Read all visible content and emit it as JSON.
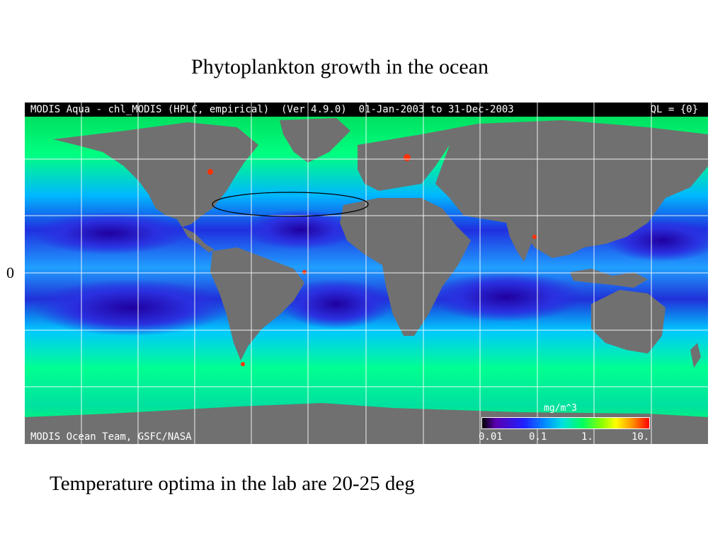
{
  "title": "Phytoplankton growth in the ocean",
  "equator_label": "0",
  "caption": "Temperature optima in the lab are 20-25 deg",
  "map": {
    "header": "MODIS Aqua - chl_MODIS (HPLC, empirical)  (Ver 4.9.0)  01-Jan-2003 to 31-Dec-2003",
    "ql": "QL = {0}",
    "credit": "MODIS Ocean Team, GSFC/NASA",
    "colorbar": {
      "unit": "mg/m^3",
      "ticks": [
        "0.01",
        "0.1",
        "1.",
        "10."
      ],
      "scale": "log"
    },
    "colors": {
      "land": "#707070",
      "oligotrophic": "#2020e0",
      "mid": "#00c0ff",
      "productive": "#00ff80",
      "high": "#ff2000"
    }
  }
}
